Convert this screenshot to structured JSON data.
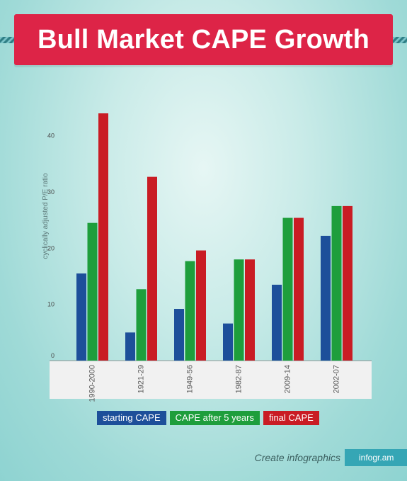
{
  "colors": {
    "background": "#b7e3e1",
    "banner": "#dd2447",
    "starting": "#1d4f9a",
    "after5": "#1e9e3c",
    "final": "#c91c24"
  },
  "banner": {
    "title": "Bull Market CAPE Growth"
  },
  "chart_data": {
    "type": "bar",
    "title": "Bull Market CAPE Growth",
    "ylabel": "cyclically adjusted P/E ratio",
    "xlabel": "",
    "categories": [
      "1990-2000",
      "1921-29",
      "1949-56",
      "1982-87",
      "2009-14",
      "2002-07"
    ],
    "series": [
      {
        "name": "starting CAPE",
        "color": "#1d4f9a",
        "values": [
          15.5,
          5.0,
          9.2,
          6.6,
          13.5,
          22.2
        ]
      },
      {
        "name": "CAPE after 5 years",
        "color": "#1e9e3c",
        "values": [
          24.5,
          12.7,
          17.7,
          18.0,
          25.4,
          27.5
        ]
      },
      {
        "name": "final CAPE",
        "color": "#c91c24",
        "values": [
          44.0,
          32.7,
          19.6,
          18.0,
          25.4,
          27.5
        ]
      }
    ],
    "ylim": [
      0,
      44
    ],
    "yticks": [
      0,
      10,
      20,
      30,
      40
    ],
    "grid": false,
    "legend": "bottom"
  },
  "legend": {
    "items": [
      {
        "label": "starting CAPE",
        "color": "#1d4f9a"
      },
      {
        "label": "CAPE after 5 years",
        "color": "#1e9e3c"
      },
      {
        "label": "final CAPE",
        "color": "#c91c24"
      }
    ]
  },
  "footer": {
    "text": "Create infographics",
    "badge": "infogr.am"
  }
}
